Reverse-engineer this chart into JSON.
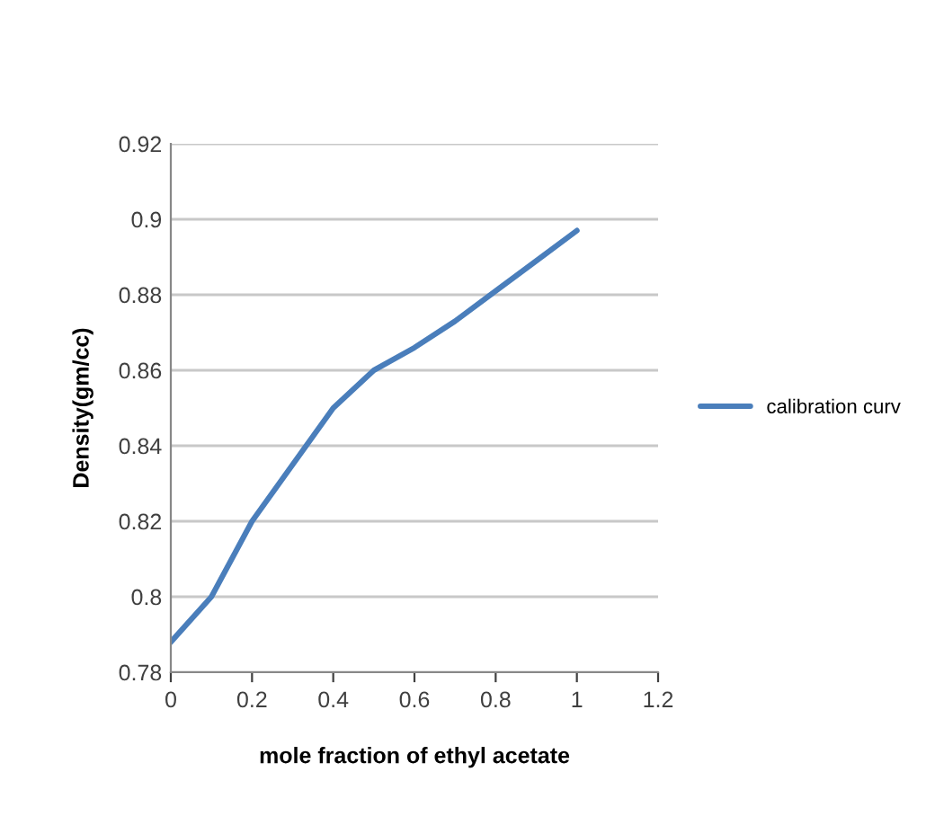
{
  "chart_data": {
    "type": "line",
    "xlabel": "mole fraction of ethyl acetate",
    "ylabel": "Density(gm/cc)",
    "x": [
      0,
      0.1,
      0.2,
      0.3,
      0.4,
      0.5,
      0.6,
      0.7,
      0.8,
      0.9,
      1
    ],
    "series": [
      {
        "name": "calibration curv",
        "color": "#4a7ebb",
        "values": [
          0.788,
          0.8,
          0.82,
          0.835,
          0.85,
          0.86,
          0.866,
          0.873,
          0.881,
          0.889,
          0.897
        ]
      }
    ],
    "xlim": [
      0,
      1.2
    ],
    "xticks": [
      0,
      0.2,
      0.4,
      0.6,
      0.8,
      1,
      1.2
    ],
    "ylim": [
      0.78,
      0.92
    ],
    "yticks": [
      0.78,
      0.8,
      0.82,
      0.84,
      0.86,
      0.88,
      0.9,
      0.92
    ],
    "grid": "y",
    "legend": "right",
    "marker": "none",
    "line_style": "solid"
  }
}
